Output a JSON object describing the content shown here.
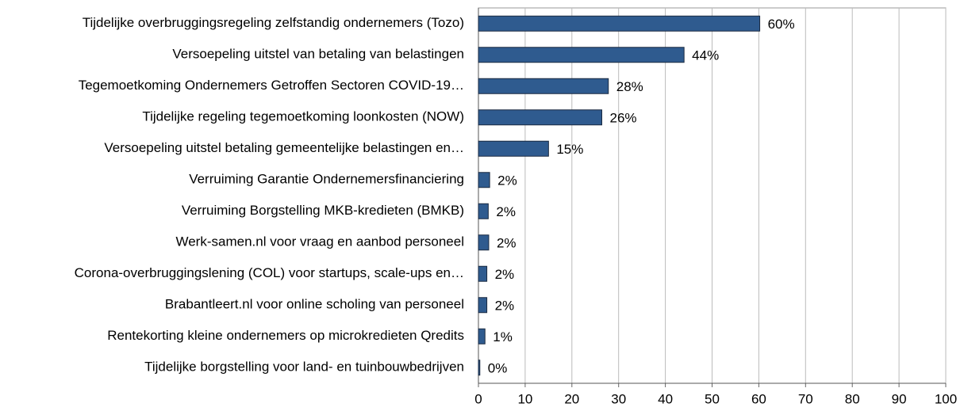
{
  "chart_data": {
    "type": "bar",
    "orientation": "horizontal",
    "categories": [
      "Tijdelijke overbruggingsregeling zelfstandig ondernemers (Tozo)",
      "Versoepeling uitstel van betaling van belastingen",
      "Tegemoetkoming Ondernemers Getroffen Sectoren COVID-19…",
      "Tijdelijke regeling tegemoetkoming loonkosten (NOW)",
      "Versoepeling uitstel betaling gemeentelijke belastingen en…",
      "Verruiming Garantie Ondernemersfinanciering",
      "Verruiming Borgstelling MKB-kredieten (BMKB)",
      "Werk-samen.nl voor vraag en aanbod personeel",
      "Corona-overbruggingslening (COL) voor startups, scale-ups en…",
      "Brabantleert.nl voor online scholing van personeel",
      "Rentekorting kleine ondernemers op microkredieten Qredits",
      "Tijdelijke borgstelling voor land- en tuinbouwbedrijven"
    ],
    "values": [
      60.2,
      44,
      27.8,
      26.4,
      15,
      2.4,
      2.1,
      2.2,
      1.8,
      1.8,
      1.4,
      0.3
    ],
    "value_labels": [
      "60%",
      "44%",
      "28%",
      "26%",
      "15%",
      "2%",
      "2%",
      "2%",
      "2%",
      "2%",
      "1%",
      "0%"
    ],
    "color": "#2f5b8f",
    "xlim": [
      0,
      100
    ],
    "xticks": [
      0,
      10,
      20,
      30,
      40,
      50,
      60,
      70,
      80,
      90,
      100
    ],
    "grid": true
  }
}
